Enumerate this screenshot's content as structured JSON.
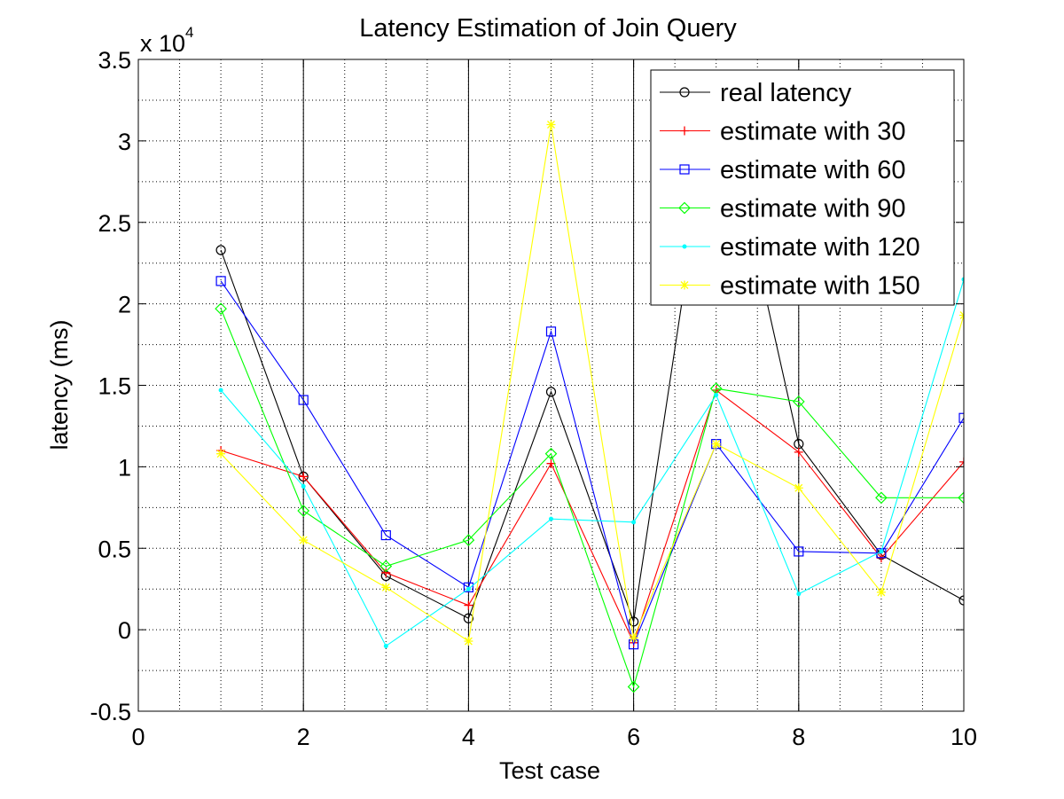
{
  "chart_data": {
    "type": "line",
    "title": "Latency Estimation of Join Query",
    "xlabel": "Test case",
    "ylabel": "latency (ms)",
    "y_exponent_label": "x 10",
    "y_exponent_power": "4",
    "xlim": [
      0,
      10
    ],
    "ylim": [
      -5000,
      35000
    ],
    "x_ticks": [
      0,
      2,
      4,
      6,
      8,
      10
    ],
    "x_tick_labels": [
      "0",
      "2",
      "4",
      "6",
      "8",
      "10"
    ],
    "y_ticks": [
      -5000,
      0,
      5000,
      10000,
      15000,
      20000,
      25000,
      30000,
      35000
    ],
    "y_tick_labels": [
      "-0.5",
      "0",
      "0.5",
      "1",
      "1.5",
      "2",
      "2.5",
      "3",
      "3.5"
    ],
    "grid": "on",
    "legend_position": "top-right",
    "x": [
      1,
      2,
      3,
      4,
      5,
      6,
      7,
      8,
      9,
      10
    ],
    "series": [
      {
        "name": "real latency",
        "color": "#000000",
        "marker": "circle",
        "values": [
          23300,
          9400,
          3300,
          700,
          14600,
          500,
          34000,
          11400,
          4600,
          1800
        ]
      },
      {
        "name": "estimate with 30",
        "color": "#ff0000",
        "marker": "plus",
        "values": [
          11000,
          9400,
          3500,
          1500,
          10200,
          -800,
          14700,
          10900,
          4400,
          10300
        ]
      },
      {
        "name": "estimate with 60",
        "color": "#0000ff",
        "marker": "square",
        "values": [
          21400,
          14100,
          5800,
          2600,
          18300,
          -900,
          11400,
          4800,
          4700,
          13000
        ]
      },
      {
        "name": "estimate with 90",
        "color": "#00ff00",
        "marker": "diamond",
        "values": [
          19700,
          7300,
          3900,
          5500,
          10800,
          -3500,
          14800,
          14000,
          8100,
          8100
        ]
      },
      {
        "name": "estimate with 120",
        "color": "#00ffff",
        "marker": "dot",
        "values": [
          14700,
          8800,
          -1000,
          2500,
          6800,
          6600,
          14400,
          2200,
          4800,
          21500
        ]
      },
      {
        "name": "estimate with 150",
        "color": "#ffff00",
        "marker": "star",
        "values": [
          10800,
          5500,
          2600,
          -700,
          31000,
          -500,
          11400,
          8700,
          2300,
          19300
        ]
      }
    ]
  }
}
